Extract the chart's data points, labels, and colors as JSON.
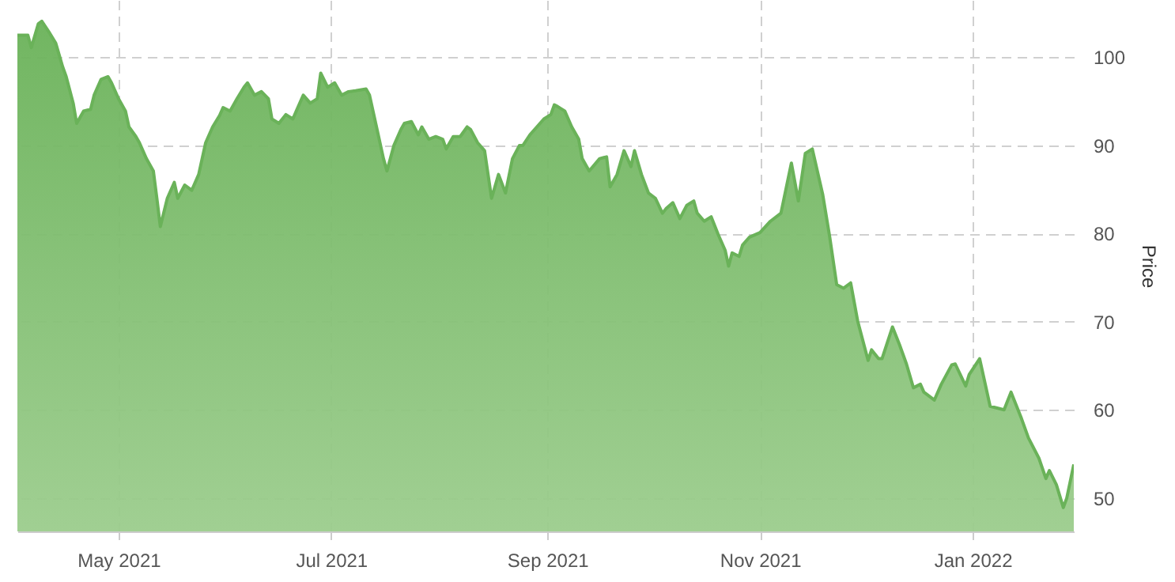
{
  "chart_data": {
    "type": "area",
    "ylabel": "Price",
    "xlim": [
      "2021-04-02",
      "2022-01-30"
    ],
    "ylim": [
      46.2,
      106.5
    ],
    "yticks": [
      50,
      60,
      70,
      80,
      90,
      100
    ],
    "xticks": [
      {
        "value": "2021-05-01",
        "label": "May 2021"
      },
      {
        "value": "2021-07-01",
        "label": "Jul 2021"
      },
      {
        "value": "2021-09-01",
        "label": "Sep 2021"
      },
      {
        "value": "2021-11-01",
        "label": "Nov 2021"
      },
      {
        "value": "2022-01-01",
        "label": "Jan 2022"
      }
    ],
    "grid": true,
    "series": [
      {
        "color": "#6ab259",
        "x": [
          "2021-04-02",
          "2021-04-05",
          "2021-04-06",
          "2021-04-08",
          "2021-04-09",
          "2021-04-11",
          "2021-04-13",
          "2021-04-15",
          "2021-04-16",
          "2021-04-18",
          "2021-04-19",
          "2021-04-21",
          "2021-04-23",
          "2021-04-24",
          "2021-04-26",
          "2021-04-28",
          "2021-04-29",
          "2021-05-01",
          "2021-05-03",
          "2021-05-04",
          "2021-05-06",
          "2021-05-07",
          "2021-05-09",
          "2021-05-11",
          "2021-05-12",
          "2021-05-13",
          "2021-05-15",
          "2021-05-17",
          "2021-05-18",
          "2021-05-20",
          "2021-05-22",
          "2021-05-24",
          "2021-05-26",
          "2021-05-28",
          "2021-05-30",
          "2021-05-31",
          "2021-06-02",
          "2021-06-04",
          "2021-06-06",
          "2021-06-07",
          "2021-06-09",
          "2021-06-11",
          "2021-06-13",
          "2021-06-14",
          "2021-06-16",
          "2021-06-18",
          "2021-06-20",
          "2021-06-21",
          "2021-06-23",
          "2021-06-25",
          "2021-06-27",
          "2021-06-28",
          "2021-06-30",
          "2021-07-02",
          "2021-07-04",
          "2021-07-06",
          "2021-07-08",
          "2021-07-11",
          "2021-07-12",
          "2021-07-14",
          "2021-07-16",
          "2021-07-17",
          "2021-07-19",
          "2021-07-21",
          "2021-07-22",
          "2021-07-24",
          "2021-07-26",
          "2021-07-27",
          "2021-07-29",
          "2021-07-31",
          "2021-08-02",
          "2021-08-03",
          "2021-08-05",
          "2021-08-07",
          "2021-08-09",
          "2021-08-10",
          "2021-08-12",
          "2021-08-14",
          "2021-08-16",
          "2021-08-18",
          "2021-08-20",
          "2021-08-22",
          "2021-08-24",
          "2021-08-25",
          "2021-08-27",
          "2021-08-29",
          "2021-08-31",
          "2021-09-02",
          "2021-09-03",
          "2021-09-04",
          "2021-09-06",
          "2021-09-08",
          "2021-09-10",
          "2021-09-11",
          "2021-09-13",
          "2021-09-16",
          "2021-09-18",
          "2021-09-19",
          "2021-09-21",
          "2021-09-23",
          "2021-09-25",
          "2021-09-26",
          "2021-09-28",
          "2021-09-30",
          "2021-10-02",
          "2021-10-04",
          "2021-10-05",
          "2021-10-07",
          "2021-10-09",
          "2021-10-11",
          "2021-10-13",
          "2021-10-14",
          "2021-10-16",
          "2021-10-18",
          "2021-10-20",
          "2021-10-22",
          "2021-10-23",
          "2021-10-24",
          "2021-10-26",
          "2021-10-27",
          "2021-10-29",
          "2021-11-01",
          "2021-11-04",
          "2021-11-07",
          "2021-11-10",
          "2021-11-12",
          "2021-11-14",
          "2021-11-16",
          "2021-11-19",
          "2021-11-21",
          "2021-11-23",
          "2021-11-25",
          "2021-11-27",
          "2021-11-29",
          "2021-12-02",
          "2021-12-03",
          "2021-12-05",
          "2021-12-06",
          "2021-12-09",
          "2021-12-11",
          "2021-12-13",
          "2021-12-15",
          "2021-12-17",
          "2021-12-18",
          "2021-12-21",
          "2021-12-23",
          "2021-12-26",
          "2021-12-27",
          "2021-12-30",
          "2021-12-31",
          "2022-01-03",
          "2022-01-06",
          "2022-01-10",
          "2022-01-12",
          "2022-01-15",
          "2022-01-17",
          "2022-01-20",
          "2022-01-22",
          "2022-01-23",
          "2022-01-25",
          "2022-01-27",
          "2022-01-28",
          "2022-01-30"
        ],
        "values": [
          102.5,
          102.5,
          101.1,
          103.8,
          104.1,
          102.9,
          101.6,
          98.9,
          97.8,
          94.8,
          92.5,
          93.9,
          94.1,
          95.7,
          97.5,
          97.8,
          97.1,
          95.3,
          93.9,
          92.1,
          91.0,
          90.3,
          88.5,
          87.1,
          84.0,
          80.8,
          84.0,
          85.8,
          84.0,
          85.5,
          84.9,
          86.7,
          90.3,
          92.1,
          93.4,
          94.3,
          93.9,
          95.3,
          96.6,
          97.1,
          95.7,
          96.1,
          95.3,
          93.0,
          92.5,
          93.5,
          93.0,
          93.9,
          95.7,
          94.8,
          95.3,
          98.2,
          96.6,
          97.1,
          95.7,
          96.1,
          96.2,
          96.4,
          95.7,
          92.1,
          88.5,
          87.1,
          90.0,
          91.8,
          92.5,
          92.7,
          91.2,
          92.1,
          90.7,
          91.0,
          90.7,
          89.6,
          91.0,
          91.0,
          92.1,
          91.8,
          90.3,
          89.4,
          84.0,
          86.7,
          84.6,
          88.5,
          90.0,
          90.0,
          91.2,
          92.1,
          93.0,
          93.5,
          94.6,
          94.4,
          93.9,
          92.1,
          90.7,
          88.5,
          87.1,
          88.5,
          88.7,
          85.3,
          86.7,
          89.4,
          87.6,
          89.4,
          86.7,
          84.6,
          84.0,
          82.3,
          82.8,
          83.5,
          81.7,
          83.2,
          83.7,
          82.3,
          81.4,
          81.9,
          79.9,
          78.1,
          76.3,
          77.8,
          77.4,
          78.7,
          79.6,
          80.1,
          81.4,
          82.3,
          88.0,
          83.7,
          89.1,
          89.6,
          84.4,
          79.6,
          74.2,
          73.8,
          74.4,
          70.1,
          65.6,
          66.8,
          65.8,
          65.8,
          69.4,
          67.4,
          65.2,
          62.5,
          62.9,
          62.0,
          61.1,
          62.9,
          65.1,
          65.2,
          62.7,
          64.0,
          65.8,
          60.4,
          60.0,
          62.0,
          59.0,
          56.8,
          54.5,
          52.2,
          53.1,
          51.5,
          48.9,
          50.0,
          53.8
        ]
      }
    ]
  }
}
